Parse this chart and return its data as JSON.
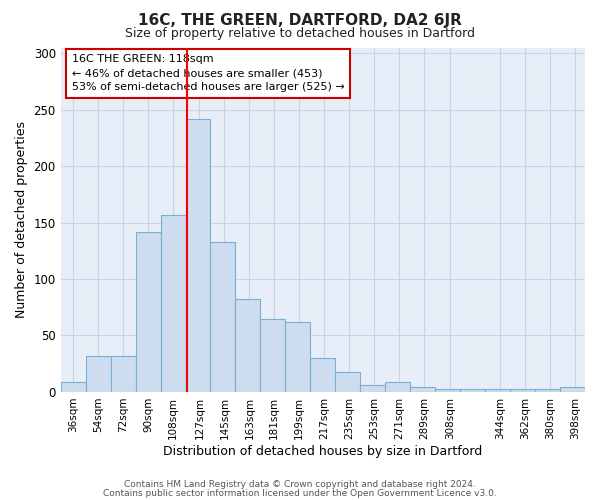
{
  "title": "16C, THE GREEN, DARTFORD, DA2 6JR",
  "subtitle": "Size of property relative to detached houses in Dartford",
  "xlabel": "Distribution of detached houses by size in Dartford",
  "ylabel": "Number of detached properties",
  "bar_color": "#cddcee",
  "bar_edge_color": "#7aafd4",
  "bar_lefts": [
    27,
    45,
    63,
    81,
    99,
    117,
    135,
    153,
    171,
    189,
    207,
    225,
    243,
    261,
    279,
    297,
    315,
    333,
    351,
    369,
    387
  ],
  "bar_heights": [
    9,
    32,
    32,
    142,
    157,
    242,
    133,
    82,
    65,
    62,
    30,
    18,
    6,
    9,
    4,
    3,
    3,
    3,
    3,
    3,
    4
  ],
  "bin_width": 18,
  "red_line_x": 118,
  "ylim": [
    0,
    305
  ],
  "yticks": [
    0,
    50,
    100,
    150,
    200,
    250,
    300
  ],
  "xtick_labels": [
    "36sqm",
    "54sqm",
    "72sqm",
    "90sqm",
    "108sqm",
    "127sqm",
    "145sqm",
    "163sqm",
    "181sqm",
    "199sqm",
    "217sqm",
    "235sqm",
    "253sqm",
    "271sqm",
    "289sqm",
    "308sqm",
    "344sqm",
    "362sqm",
    "380sqm",
    "398sqm"
  ],
  "xtick_positions": [
    36,
    54,
    72,
    90,
    108,
    127,
    145,
    163,
    181,
    199,
    217,
    235,
    253,
    271,
    289,
    308,
    344,
    362,
    380,
    398
  ],
  "annotation_text": "16C THE GREEN: 118sqm\n← 46% of detached houses are smaller (453)\n53% of semi-detached houses are larger (525) →",
  "annotation_box_color": "#ffffff",
  "annotation_box_edge": "#cc0000",
  "grid_color": "#c8d4e4",
  "background_color": "#e8eef7",
  "footer_line1": "Contains HM Land Registry data © Crown copyright and database right 2024.",
  "footer_line2": "Contains public sector information licensed under the Open Government Licence v3.0."
}
